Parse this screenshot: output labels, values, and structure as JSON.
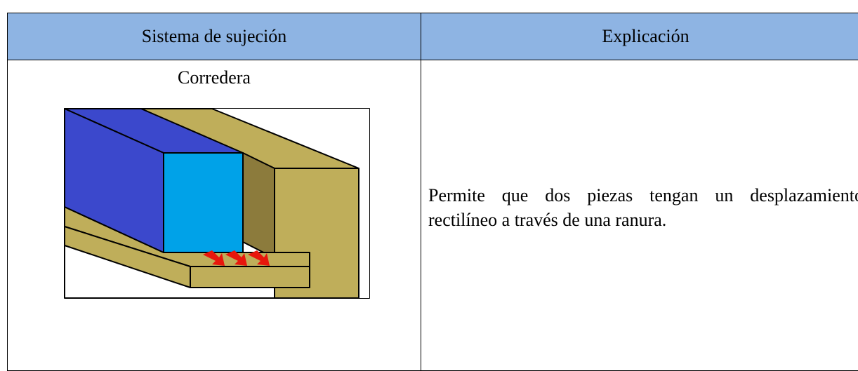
{
  "table": {
    "headers": [
      "Sistema de sujeción",
      "Explicación"
    ],
    "rows": [
      [
        "Corredera",
        "Permite que dos piezas tengan un desplazamiento rectilíneo a través de una ranura."
      ]
    ]
  }
}
